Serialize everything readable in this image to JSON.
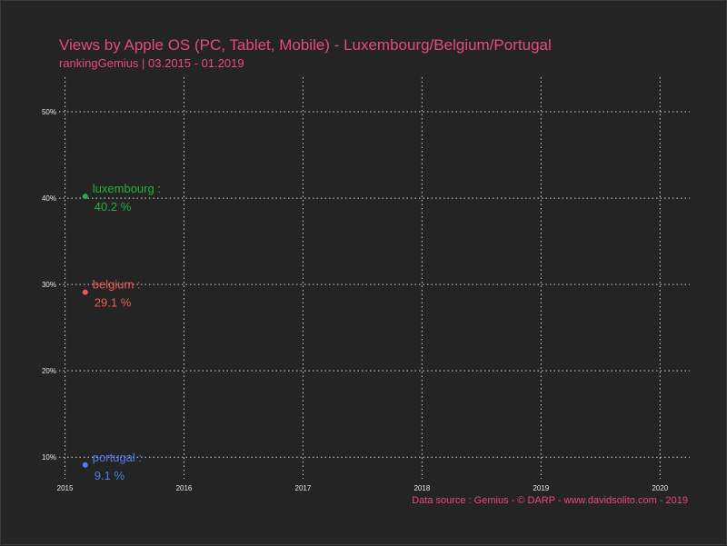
{
  "chart_data": {
    "type": "scatter",
    "title": "Views by Apple OS (PC, Tablet, Mobile) - Luxembourg/Belgium/Portugal",
    "subtitle": "rankingGemius | 03.2015 - 01.2019",
    "caption": "Data source : Gemius - © DARP - www.davidsolito.com - 2019",
    "xlabel": "",
    "ylabel": "",
    "x_ticks": [
      "2015",
      "2016",
      "2017",
      "2018",
      "2019",
      "2020"
    ],
    "y_ticks": [
      "10%",
      "20%",
      "30%",
      "40%",
      "50%"
    ],
    "xlim": [
      2014.95,
      2020.25
    ],
    "ylim": [
      7.5,
      54
    ],
    "grid": true,
    "legend": "none",
    "series": [
      {
        "name": "luxembourg",
        "label": "luxembourg :",
        "value_label": "40.2 %",
        "color": "#22b33e",
        "points": [
          {
            "x": 2015.17,
            "y": 40.2
          }
        ]
      },
      {
        "name": "belgium",
        "label": "belgium :",
        "value_label": "29.1 %",
        "color": "#ee5c55",
        "points": [
          {
            "x": 2015.17,
            "y": 29.1
          }
        ]
      },
      {
        "name": "portugal",
        "label": "portugal :",
        "value_label": "9.1 %",
        "color": "#4f7df5",
        "points": [
          {
            "x": 2015.17,
            "y": 9.1
          }
        ]
      }
    ]
  }
}
